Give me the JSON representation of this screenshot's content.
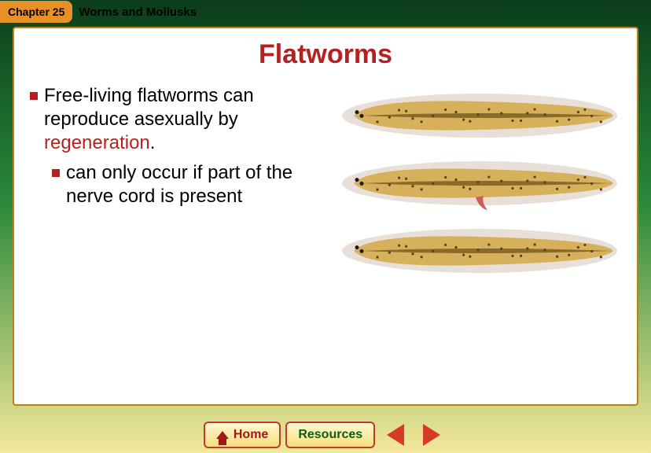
{
  "header": {
    "chapter_label": "Chapter 25",
    "chapter_title": "Worms and Mollusks"
  },
  "slide": {
    "title": "Flatworms",
    "bullets": [
      {
        "prefix": "Free-living flatworms can reproduce asexually by ",
        "highlight": "regeneration",
        "suffix": "."
      }
    ],
    "sub_bullets": [
      {
        "text": "can only occur if part of the nerve cord is present"
      }
    ]
  },
  "illustration": {
    "count": 3,
    "worm_body_color": "#d6b05a",
    "worm_edge_color": "#e8e0d8",
    "worm_stripe_color": "#8a6a2a",
    "worm_spot_color": "#5a3f18",
    "eye_color": "#1a1a1a",
    "cut_color": "#d05a5a",
    "background": "#ffffff",
    "show_cut_on_index": 1
  },
  "footer": {
    "home_label": "Home",
    "resources_label": "Resources"
  },
  "colors": {
    "accent_red": "#b52020",
    "tab_orange": "#e89028",
    "frame_border": "#c27e14",
    "arrow": "#d83a2a"
  }
}
